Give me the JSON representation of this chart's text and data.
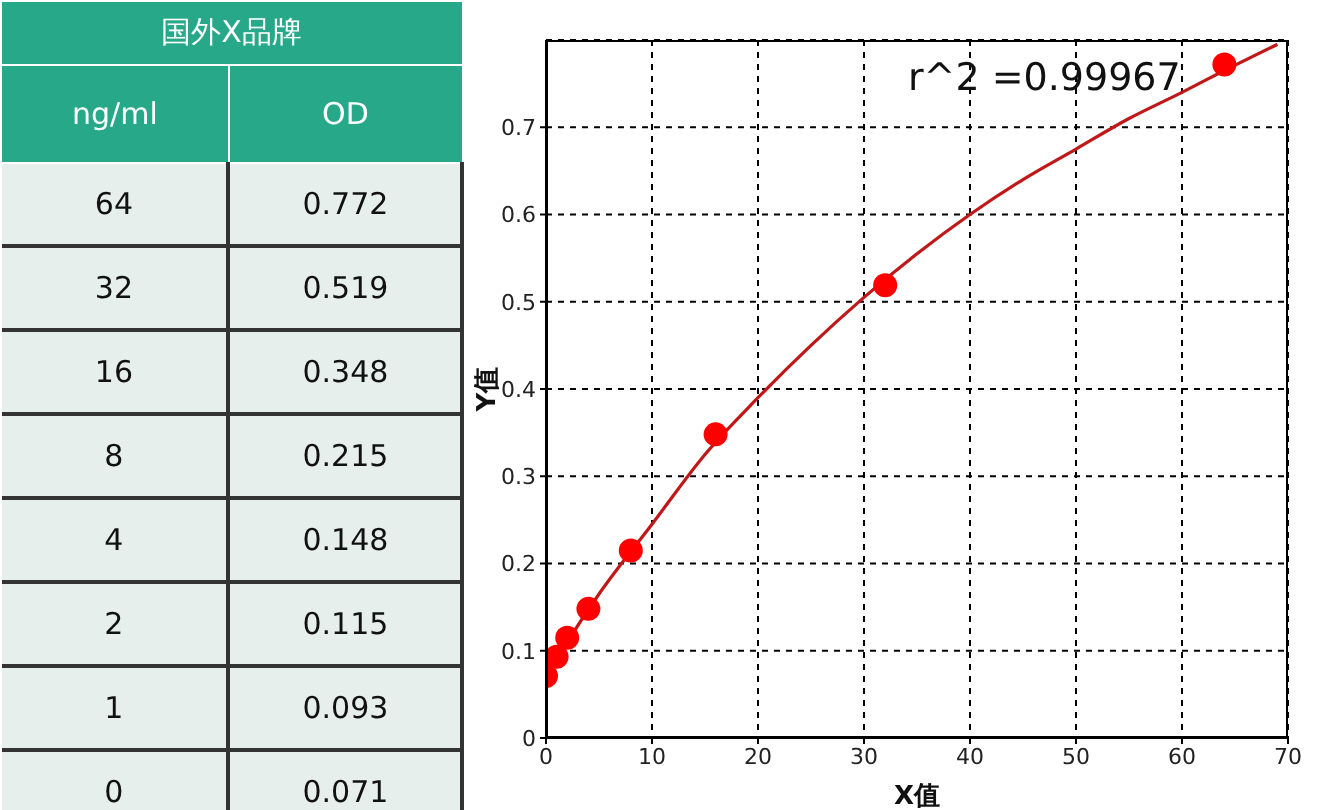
{
  "chart_data": [
    {
      "type": "other",
      "annotations": [
        "国外X品牌",
        "ng/ml",
        "OD",
        "64",
        "0.772",
        "32",
        "0.519",
        "16",
        "0.348",
        "8",
        "0.215",
        "4",
        "0.148",
        "2",
        "0.115",
        "1",
        "0.093",
        "0",
        "0.071"
      ]
    },
    {
      "type": "scatter",
      "xlabel": "X值",
      "ylabel": "Y值",
      "annotations": [
        "r^2 =0.99967"
      ],
      "xlim": [
        0,
        70
      ],
      "xticks": [
        0,
        10,
        20,
        30,
        40,
        50,
        60,
        70
      ],
      "ylim": [
        0,
        0.8
      ],
      "yticks": [
        0,
        0.1,
        0.2,
        0.3,
        0.4,
        0.5,
        0.6,
        0.7
      ],
      "grid": true,
      "marker": "circle",
      "series": [
        {
          "color": "#ff0000",
          "x": [
            64,
            32,
            16,
            8,
            4,
            2,
            1,
            0
          ],
          "values": [
            0.772,
            0.519,
            0.348,
            0.215,
            0.148,
            0.115,
            0.093,
            0.071
          ]
        },
        {
          "type": "line",
          "color": "#c01818",
          "marker": "none",
          "line_style": "solid",
          "x": [
            0,
            2,
            5,
            10,
            15,
            20,
            25,
            30,
            35,
            40,
            45,
            50,
            55,
            60,
            64,
            69
          ],
          "values": [
            0.07,
            0.11,
            0.165,
            0.245,
            0.325,
            0.39,
            0.45,
            0.505,
            0.555,
            0.6,
            0.64,
            0.675,
            0.71,
            0.74,
            0.765,
            0.795
          ]
        }
      ]
    }
  ]
}
